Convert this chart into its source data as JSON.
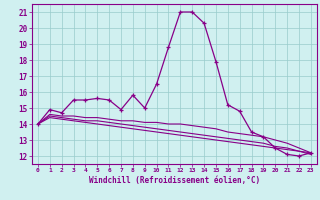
{
  "xlabel": "Windchill (Refroidissement éolien,°C)",
  "background_color": "#d0f0f0",
  "line_color": "#880088",
  "grid_color": "#99cccc",
  "x_ticks": [
    0,
    1,
    2,
    3,
    4,
    5,
    6,
    7,
    8,
    9,
    10,
    11,
    12,
    13,
    14,
    15,
    16,
    17,
    18,
    19,
    20,
    21,
    22,
    23
  ],
  "y_ticks": [
    12,
    13,
    14,
    15,
    16,
    17,
    18,
    19,
    20,
    21
  ],
  "ylim": [
    11.5,
    21.5
  ],
  "xlim": [
    -0.5,
    23.5
  ],
  "series": [
    [
      14.0,
      14.9,
      14.7,
      15.5,
      15.5,
      15.6,
      15.5,
      14.9,
      15.8,
      15.0,
      16.5,
      18.8,
      21.0,
      21.0,
      20.3,
      17.9,
      15.2,
      14.8,
      13.5,
      13.2,
      12.5,
      12.1,
      12.0,
      12.2
    ],
    [
      14.0,
      14.6,
      14.5,
      14.5,
      14.4,
      14.4,
      14.3,
      14.2,
      14.2,
      14.1,
      14.1,
      14.0,
      14.0,
      13.9,
      13.8,
      13.7,
      13.5,
      13.4,
      13.3,
      13.2,
      13.0,
      12.8,
      12.5,
      12.2
    ],
    [
      14.0,
      14.5,
      14.4,
      14.3,
      14.2,
      14.2,
      14.1,
      14.0,
      13.9,
      13.8,
      13.7,
      13.6,
      13.5,
      13.4,
      13.3,
      13.2,
      13.1,
      13.0,
      12.9,
      12.8,
      12.6,
      12.5,
      12.3,
      12.2
    ],
    [
      14.0,
      14.4,
      14.3,
      14.2,
      14.1,
      14.0,
      13.9,
      13.8,
      13.7,
      13.6,
      13.5,
      13.4,
      13.3,
      13.2,
      13.1,
      13.0,
      12.9,
      12.8,
      12.7,
      12.6,
      12.5,
      12.4,
      12.3,
      12.1
    ]
  ]
}
